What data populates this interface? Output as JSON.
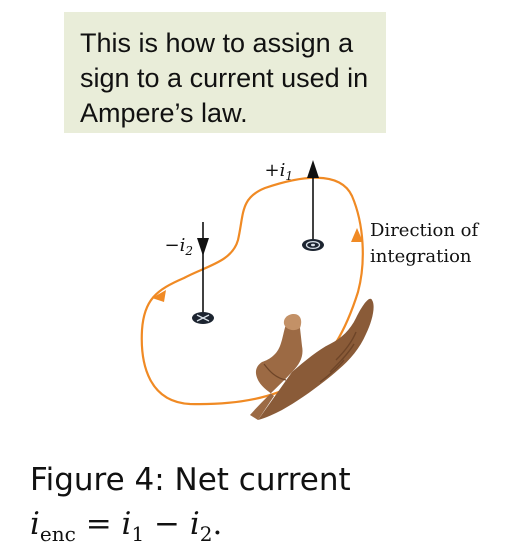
{
  "callout": {
    "lines": [
      "This is how to assign a",
      "sign to a current used in",
      "Ampere’s law."
    ],
    "background": "#e9edd9"
  },
  "diagram": {
    "current1_label": "+i",
    "current1_sub": "1",
    "current2_label": "−i",
    "current2_sub": "2",
    "direction_label_line1": "Direction of",
    "direction_label_line2": "integration",
    "loop_color": "#f08a24",
    "hand_color": "#9c6a44"
  },
  "caption": {
    "prefix": "Figure 4:  Net current",
    "eq_i": "i",
    "eq_sub": "enc",
    "eq_rest1": " = ",
    "eq_i1": "i",
    "eq_sub1": "1",
    "eq_minus": " − ",
    "eq_i2": "i",
    "eq_sub2": "2",
    "eq_end": "."
  }
}
